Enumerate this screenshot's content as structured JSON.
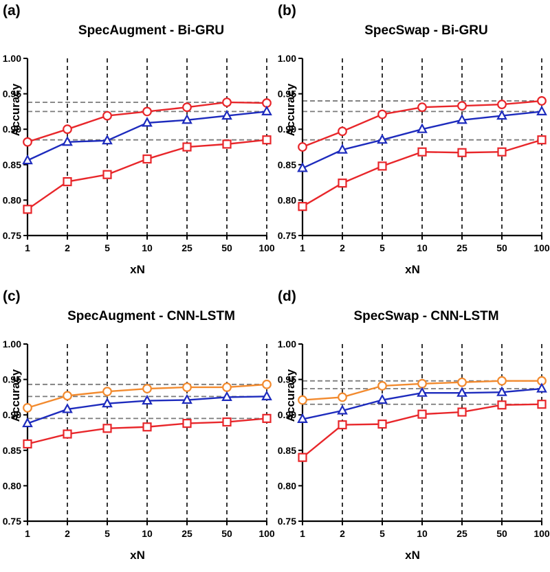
{
  "colors": {
    "red": "#e8262a",
    "blue": "#1d2bbd",
    "orange": "#f28a2e",
    "ref_line": "#7a7a7a",
    "grid": "#000000"
  },
  "chart_data": [
    {
      "type": "line",
      "panel_label": "(a)",
      "title": "SpecAugment - Bi-GRU",
      "xlabel": "xN",
      "ylabel": "Accuracy",
      "x_ticks": [
        "1",
        "2",
        "5",
        "10",
        "25",
        "50",
        "100"
      ],
      "y_ticks": [
        "0.75",
        "0.80",
        "0.85",
        "0.90",
        "0.95",
        "1.00"
      ],
      "ylim": [
        0.75,
        1.0
      ],
      "grid": "vertical dashed",
      "series": [
        {
          "marker": "circle",
          "color": "red",
          "values": [
            0.882,
            0.9,
            0.919,
            0.925,
            0.931,
            0.938,
            0.937
          ]
        },
        {
          "marker": "triangle",
          "color": "blue",
          "values": [
            0.856,
            0.882,
            0.884,
            0.909,
            0.913,
            0.919,
            0.925
          ]
        },
        {
          "marker": "square",
          "color": "red",
          "values": [
            0.787,
            0.826,
            0.836,
            0.858,
            0.875,
            0.879,
            0.885
          ]
        }
      ],
      "reference_lines": [
        0.938,
        0.925,
        0.885
      ]
    },
    {
      "type": "line",
      "panel_label": "(b)",
      "title": "SpecSwap - Bi-GRU",
      "xlabel": "xN",
      "ylabel": "Accuracy",
      "x_ticks": [
        "1",
        "2",
        "5",
        "10",
        "25",
        "50",
        "100"
      ],
      "y_ticks": [
        "0.75",
        "0.80",
        "0.85",
        "0.90",
        "0.95",
        "1.00"
      ],
      "ylim": [
        0.75,
        1.0
      ],
      "grid": "vertical dashed",
      "series": [
        {
          "marker": "circle",
          "color": "red",
          "values": [
            0.875,
            0.897,
            0.921,
            0.931,
            0.933,
            0.935,
            0.94
          ]
        },
        {
          "marker": "triangle",
          "color": "blue",
          "values": [
            0.845,
            0.871,
            0.885,
            0.9,
            0.913,
            0.919,
            0.925
          ]
        },
        {
          "marker": "square",
          "color": "red",
          "values": [
            0.791,
            0.824,
            0.848,
            0.868,
            0.867,
            0.868,
            0.885
          ]
        }
      ],
      "reference_lines": [
        0.94,
        0.925,
        0.885
      ]
    },
    {
      "type": "line",
      "panel_label": "(c)",
      "title": "SpecAugment - CNN-LSTM",
      "xlabel": "xN",
      "ylabel": "Accuracy",
      "x_ticks": [
        "1",
        "2",
        "5",
        "10",
        "25",
        "50",
        "100"
      ],
      "y_ticks": [
        "0.75",
        "0.80",
        "0.85",
        "0.90",
        "0.95",
        "1.00"
      ],
      "ylim": [
        0.75,
        1.0
      ],
      "grid": "vertical dashed",
      "series": [
        {
          "marker": "circle",
          "color": "orange",
          "values": [
            0.91,
            0.927,
            0.933,
            0.937,
            0.939,
            0.939,
            0.943
          ]
        },
        {
          "marker": "triangle",
          "color": "blue",
          "values": [
            0.888,
            0.908,
            0.916,
            0.92,
            0.921,
            0.925,
            0.926
          ]
        },
        {
          "marker": "square",
          "color": "red",
          "values": [
            0.859,
            0.873,
            0.881,
            0.883,
            0.888,
            0.89,
            0.895
          ]
        }
      ],
      "reference_lines": [
        0.943,
        0.926,
        0.895
      ]
    },
    {
      "type": "line",
      "panel_label": "(d)",
      "title": "SpecSwap - CNN-LSTM",
      "xlabel": "xN",
      "ylabel": "Accuracy",
      "x_ticks": [
        "1",
        "2",
        "5",
        "10",
        "25",
        "50",
        "100"
      ],
      "y_ticks": [
        "0.75",
        "0.80",
        "0.85",
        "0.90",
        "0.95",
        "1.00"
      ],
      "ylim": [
        0.75,
        1.0
      ],
      "grid": "vertical dashed",
      "series": [
        {
          "marker": "circle",
          "color": "orange",
          "values": [
            0.921,
            0.925,
            0.941,
            0.944,
            0.946,
            0.948,
            0.948
          ]
        },
        {
          "marker": "triangle",
          "color": "blue",
          "values": [
            0.894,
            0.906,
            0.921,
            0.931,
            0.931,
            0.932,
            0.937
          ]
        },
        {
          "marker": "square",
          "color": "red",
          "values": [
            0.84,
            0.886,
            0.887,
            0.901,
            0.904,
            0.914,
            0.915
          ]
        }
      ],
      "reference_lines": [
        0.948,
        0.937,
        0.915
      ]
    }
  ]
}
